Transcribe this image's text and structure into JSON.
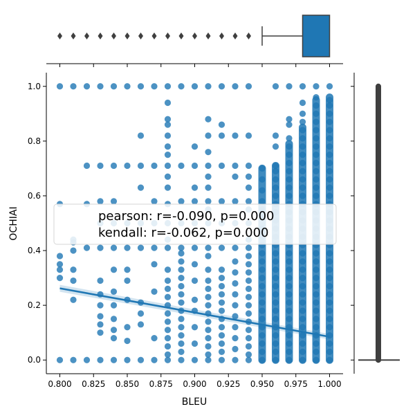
{
  "chart_data": {
    "type": "scatter",
    "subtype": "jointplot",
    "title": "",
    "xlabel": "BLEU",
    "ylabel": "OCHIAI",
    "xlim": [
      0.79,
      1.01
    ],
    "ylim": [
      -0.05,
      1.05
    ],
    "x_ticks": [
      "0.800",
      "0.825",
      "0.850",
      "0.875",
      "0.900",
      "0.925",
      "0.950",
      "0.975",
      "1.000"
    ],
    "y_ticks": [
      "0.0",
      "0.2",
      "0.4",
      "0.6",
      "0.8",
      "1.0"
    ],
    "annotation_lines": [
      "pearson: r=-0.090, p=0.000",
      "kendall: r=-0.062, p=0.000"
    ],
    "pearson": {
      "r": -0.09,
      "p": 0.0
    },
    "kendall": {
      "r": -0.062,
      "p": 0.0
    },
    "regression": {
      "x": [
        0.8,
        1.0
      ],
      "y": [
        0.262,
        0.085
      ]
    },
    "marker_color": "#1f77b4",
    "box_edge_color": "#3f3f3f",
    "x_levels": [
      0.8,
      0.81,
      0.82,
      0.83,
      0.84,
      0.85,
      0.86,
      0.87,
      0.88,
      0.89,
      0.9,
      0.91,
      0.92,
      0.93,
      0.94,
      0.95,
      0.96,
      0.97,
      0.98,
      0.99,
      1.0
    ],
    "points": [
      [
        0.8,
        0.0
      ],
      [
        0.8,
        0.3
      ],
      [
        0.8,
        0.33
      ],
      [
        0.8,
        0.35
      ],
      [
        0.8,
        0.38
      ],
      [
        0.8,
        0.57
      ],
      [
        0.8,
        1.0
      ],
      [
        0.81,
        0.0
      ],
      [
        0.81,
        0.22
      ],
      [
        0.81,
        0.29
      ],
      [
        0.81,
        0.33
      ],
      [
        0.81,
        0.4
      ],
      [
        0.81,
        0.43
      ],
      [
        0.81,
        0.44
      ],
      [
        0.81,
        1.0
      ],
      [
        0.82,
        0.0
      ],
      [
        0.82,
        0.41
      ],
      [
        0.82,
        0.57
      ],
      [
        0.82,
        0.71
      ],
      [
        0.82,
        1.0
      ],
      [
        0.83,
        0.0
      ],
      [
        0.83,
        0.1
      ],
      [
        0.83,
        0.13
      ],
      [
        0.83,
        0.16
      ],
      [
        0.83,
        0.2
      ],
      [
        0.83,
        0.24
      ],
      [
        0.83,
        0.29
      ],
      [
        0.83,
        0.41
      ],
      [
        0.83,
        0.5
      ],
      [
        0.83,
        0.58
      ],
      [
        0.83,
        0.71
      ],
      [
        0.83,
        1.0
      ],
      [
        0.84,
        0.0
      ],
      [
        0.84,
        0.08
      ],
      [
        0.84,
        0.11
      ],
      [
        0.84,
        0.15
      ],
      [
        0.84,
        0.2
      ],
      [
        0.84,
        0.25
      ],
      [
        0.84,
        0.33
      ],
      [
        0.84,
        0.41
      ],
      [
        0.84,
        0.5
      ],
      [
        0.84,
        0.58
      ],
      [
        0.84,
        0.71
      ],
      [
        0.84,
        1.0
      ],
      [
        0.85,
        0.0
      ],
      [
        0.85,
        0.07
      ],
      [
        0.85,
        0.12
      ],
      [
        0.85,
        0.22
      ],
      [
        0.85,
        0.29
      ],
      [
        0.85,
        0.33
      ],
      [
        0.85,
        0.41
      ],
      [
        0.85,
        0.5
      ],
      [
        0.85,
        0.71
      ],
      [
        0.85,
        1.0
      ],
      [
        0.86,
        0.0
      ],
      [
        0.86,
        0.13
      ],
      [
        0.86,
        0.17
      ],
      [
        0.86,
        0.21
      ],
      [
        0.86,
        0.41
      ],
      [
        0.86,
        0.5
      ],
      [
        0.86,
        0.63
      ],
      [
        0.86,
        0.71
      ],
      [
        0.86,
        0.82
      ],
      [
        0.86,
        1.0
      ],
      [
        0.87,
        0.0
      ],
      [
        0.87,
        0.08
      ],
      [
        0.87,
        0.25
      ],
      [
        0.87,
        0.35
      ],
      [
        0.87,
        0.41
      ],
      [
        0.87,
        0.5
      ],
      [
        0.87,
        0.58
      ],
      [
        0.87,
        0.71
      ],
      [
        0.87,
        1.0
      ],
      [
        0.88,
        0.0
      ],
      [
        0.88,
        0.02
      ],
      [
        0.88,
        0.05
      ],
      [
        0.88,
        0.08
      ],
      [
        0.88,
        0.11
      ],
      [
        0.88,
        0.14
      ],
      [
        0.88,
        0.17
      ],
      [
        0.88,
        0.2
      ],
      [
        0.88,
        0.23
      ],
      [
        0.88,
        0.26
      ],
      [
        0.88,
        0.29
      ],
      [
        0.88,
        0.33
      ],
      [
        0.88,
        0.41
      ],
      [
        0.88,
        0.44
      ],
      [
        0.88,
        0.5
      ],
      [
        0.88,
        0.57
      ],
      [
        0.88,
        0.63
      ],
      [
        0.88,
        0.67
      ],
      [
        0.88,
        0.71
      ],
      [
        0.88,
        0.75
      ],
      [
        0.88,
        0.78
      ],
      [
        0.88,
        0.82
      ],
      [
        0.88,
        0.86
      ],
      [
        0.88,
        0.88
      ],
      [
        0.88,
        0.94
      ],
      [
        0.88,
        1.0
      ],
      [
        0.89,
        0.0
      ],
      [
        0.89,
        0.03
      ],
      [
        0.89,
        0.06
      ],
      [
        0.89,
        0.09
      ],
      [
        0.89,
        0.12
      ],
      [
        0.89,
        0.15
      ],
      [
        0.89,
        0.18
      ],
      [
        0.89,
        0.21
      ],
      [
        0.89,
        0.24
      ],
      [
        0.89,
        0.27
      ],
      [
        0.89,
        0.3
      ],
      [
        0.89,
        0.33
      ],
      [
        0.89,
        0.36
      ],
      [
        0.89,
        0.39
      ],
      [
        0.89,
        0.41
      ],
      [
        0.89,
        0.5
      ],
      [
        0.89,
        0.58
      ],
      [
        0.89,
        0.71
      ],
      [
        0.89,
        1.0
      ],
      [
        0.9,
        0.0
      ],
      [
        0.9,
        0.06
      ],
      [
        0.9,
        0.12
      ],
      [
        0.9,
        0.18
      ],
      [
        0.9,
        0.22
      ],
      [
        0.9,
        0.29
      ],
      [
        0.9,
        0.35
      ],
      [
        0.9,
        0.41
      ],
      [
        0.9,
        0.5
      ],
      [
        0.9,
        0.58
      ],
      [
        0.9,
        0.63
      ],
      [
        0.9,
        0.71
      ],
      [
        0.9,
        0.78
      ],
      [
        0.9,
        1.0
      ],
      [
        0.91,
        0.0
      ],
      [
        0.91,
        0.02
      ],
      [
        0.91,
        0.05
      ],
      [
        0.91,
        0.08
      ],
      [
        0.91,
        0.11
      ],
      [
        0.91,
        0.14
      ],
      [
        0.91,
        0.17
      ],
      [
        0.91,
        0.2
      ],
      [
        0.91,
        0.23
      ],
      [
        0.91,
        0.26
      ],
      [
        0.91,
        0.29
      ],
      [
        0.91,
        0.33
      ],
      [
        0.91,
        0.38
      ],
      [
        0.91,
        0.41
      ],
      [
        0.91,
        0.5
      ],
      [
        0.91,
        0.55
      ],
      [
        0.91,
        0.58
      ],
      [
        0.91,
        0.63
      ],
      [
        0.91,
        0.67
      ],
      [
        0.91,
        0.71
      ],
      [
        0.91,
        0.76
      ],
      [
        0.91,
        0.82
      ],
      [
        0.91,
        0.88
      ],
      [
        0.91,
        1.0
      ],
      [
        0.92,
        0.0
      ],
      [
        0.92,
        0.03
      ],
      [
        0.92,
        0.06
      ],
      [
        0.92,
        0.09
      ],
      [
        0.92,
        0.12
      ],
      [
        0.92,
        0.15
      ],
      [
        0.92,
        0.18
      ],
      [
        0.92,
        0.21
      ],
      [
        0.92,
        0.24
      ],
      [
        0.92,
        0.27
      ],
      [
        0.92,
        0.3
      ],
      [
        0.92,
        0.33
      ],
      [
        0.92,
        0.41
      ],
      [
        0.92,
        0.5
      ],
      [
        0.92,
        0.58
      ],
      [
        0.92,
        0.71
      ],
      [
        0.92,
        0.82
      ],
      [
        0.92,
        0.86
      ],
      [
        0.92,
        1.0
      ],
      [
        0.93,
        0.0
      ],
      [
        0.93,
        0.04
      ],
      [
        0.93,
        0.08
      ],
      [
        0.93,
        0.12
      ],
      [
        0.93,
        0.16
      ],
      [
        0.93,
        0.2
      ],
      [
        0.93,
        0.24
      ],
      [
        0.93,
        0.28
      ],
      [
        0.93,
        0.32
      ],
      [
        0.93,
        0.36
      ],
      [
        0.93,
        0.41
      ],
      [
        0.93,
        0.5
      ],
      [
        0.93,
        0.58
      ],
      [
        0.93,
        0.67
      ],
      [
        0.93,
        0.71
      ],
      [
        0.93,
        0.82
      ],
      [
        0.93,
        1.0
      ],
      [
        0.94,
        0.0
      ],
      [
        0.94,
        0.02
      ],
      [
        0.94,
        0.05
      ],
      [
        0.94,
        0.08
      ],
      [
        0.94,
        0.11
      ],
      [
        0.94,
        0.14
      ],
      [
        0.94,
        0.17
      ],
      [
        0.94,
        0.2
      ],
      [
        0.94,
        0.23
      ],
      [
        0.94,
        0.26
      ],
      [
        0.94,
        0.29
      ],
      [
        0.94,
        0.32
      ],
      [
        0.94,
        0.35
      ],
      [
        0.94,
        0.38
      ],
      [
        0.94,
        0.41
      ],
      [
        0.94,
        0.44
      ],
      [
        0.94,
        0.5
      ],
      [
        0.94,
        0.55
      ],
      [
        0.94,
        0.58
      ],
      [
        0.94,
        0.63
      ],
      [
        0.94,
        0.67
      ],
      [
        0.94,
        0.71
      ],
      [
        0.94,
        0.82
      ],
      [
        0.94,
        1.0
      ],
      [
        0.95,
        0.0
      ],
      [
        0.95,
        0.03
      ],
      [
        0.95,
        0.06
      ],
      [
        0.95,
        0.09
      ],
      [
        0.95,
        0.12
      ],
      [
        0.95,
        0.15
      ],
      [
        0.95,
        0.18
      ],
      [
        0.95,
        0.21
      ],
      [
        0.95,
        0.24
      ],
      [
        0.95,
        0.27
      ],
      [
        0.95,
        0.3
      ],
      [
        0.95,
        0.33
      ],
      [
        0.95,
        0.36
      ],
      [
        0.95,
        0.39
      ],
      [
        0.95,
        0.42
      ],
      [
        0.95,
        0.45
      ],
      [
        0.95,
        0.48
      ],
      [
        0.95,
        0.52
      ],
      [
        0.95,
        0.55
      ],
      [
        0.95,
        0.58
      ],
      [
        0.95,
        0.62
      ],
      [
        0.95,
        0.66
      ],
      [
        0.95,
        0.7
      ],
      [
        0.96,
        0.0
      ],
      [
        0.96,
        0.03
      ],
      [
        0.96,
        0.06
      ],
      [
        0.96,
        0.09
      ],
      [
        0.96,
        0.12
      ],
      [
        0.96,
        0.15
      ],
      [
        0.96,
        0.18
      ],
      [
        0.96,
        0.21
      ],
      [
        0.96,
        0.24
      ],
      [
        0.96,
        0.27
      ],
      [
        0.96,
        0.3
      ],
      [
        0.96,
        0.33
      ],
      [
        0.96,
        0.36
      ],
      [
        0.96,
        0.39
      ],
      [
        0.96,
        0.42
      ],
      [
        0.96,
        0.45
      ],
      [
        0.96,
        0.48
      ],
      [
        0.96,
        0.51
      ],
      [
        0.96,
        0.54
      ],
      [
        0.96,
        0.57
      ],
      [
        0.96,
        0.6
      ],
      [
        0.96,
        0.63
      ],
      [
        0.96,
        0.66
      ],
      [
        0.96,
        0.69
      ],
      [
        0.96,
        0.71
      ],
      [
        0.96,
        0.78
      ],
      [
        0.96,
        0.82
      ],
      [
        0.96,
        1.0
      ],
      [
        0.97,
        0.0
      ],
      [
        0.97,
        0.03
      ],
      [
        0.97,
        0.06
      ],
      [
        0.97,
        0.09
      ],
      [
        0.97,
        0.12
      ],
      [
        0.97,
        0.15
      ],
      [
        0.97,
        0.18
      ],
      [
        0.97,
        0.21
      ],
      [
        0.97,
        0.24
      ],
      [
        0.97,
        0.27
      ],
      [
        0.97,
        0.3
      ],
      [
        0.97,
        0.33
      ],
      [
        0.97,
        0.36
      ],
      [
        0.97,
        0.39
      ],
      [
        0.97,
        0.42
      ],
      [
        0.97,
        0.45
      ],
      [
        0.97,
        0.48
      ],
      [
        0.97,
        0.51
      ],
      [
        0.97,
        0.54
      ],
      [
        0.97,
        0.57
      ],
      [
        0.97,
        0.6
      ],
      [
        0.97,
        0.63
      ],
      [
        0.97,
        0.66
      ],
      [
        0.97,
        0.69
      ],
      [
        0.97,
        0.72
      ],
      [
        0.97,
        0.75
      ],
      [
        0.97,
        0.78
      ],
      [
        0.97,
        0.81
      ],
      [
        0.97,
        0.86
      ],
      [
        0.97,
        0.88
      ],
      [
        0.97,
        1.0
      ],
      [
        0.98,
        0.0
      ],
      [
        0.98,
        0.03
      ],
      [
        0.98,
        0.06
      ],
      [
        0.98,
        0.09
      ],
      [
        0.98,
        0.12
      ],
      [
        0.98,
        0.15
      ],
      [
        0.98,
        0.18
      ],
      [
        0.98,
        0.21
      ],
      [
        0.98,
        0.24
      ],
      [
        0.98,
        0.27
      ],
      [
        0.98,
        0.3
      ],
      [
        0.98,
        0.33
      ],
      [
        0.98,
        0.36
      ],
      [
        0.98,
        0.39
      ],
      [
        0.98,
        0.42
      ],
      [
        0.98,
        0.45
      ],
      [
        0.98,
        0.48
      ],
      [
        0.98,
        0.51
      ],
      [
        0.98,
        0.54
      ],
      [
        0.98,
        0.57
      ],
      [
        0.98,
        0.6
      ],
      [
        0.98,
        0.63
      ],
      [
        0.98,
        0.66
      ],
      [
        0.98,
        0.69
      ],
      [
        0.98,
        0.72
      ],
      [
        0.98,
        0.75
      ],
      [
        0.98,
        0.78
      ],
      [
        0.98,
        0.81
      ],
      [
        0.98,
        0.84
      ],
      [
        0.98,
        0.87
      ],
      [
        0.98,
        0.9
      ],
      [
        0.98,
        0.94
      ],
      [
        0.98,
        1.0
      ],
      [
        0.99,
        0.0
      ],
      [
        0.99,
        0.03
      ],
      [
        0.99,
        0.06
      ],
      [
        0.99,
        0.09
      ],
      [
        0.99,
        0.12
      ],
      [
        0.99,
        0.15
      ],
      [
        0.99,
        0.18
      ],
      [
        0.99,
        0.21
      ],
      [
        0.99,
        0.24
      ],
      [
        0.99,
        0.27
      ],
      [
        0.99,
        0.3
      ],
      [
        0.99,
        0.33
      ],
      [
        0.99,
        0.36
      ],
      [
        0.99,
        0.39
      ],
      [
        0.99,
        0.42
      ],
      [
        0.99,
        0.45
      ],
      [
        0.99,
        0.48
      ],
      [
        0.99,
        0.51
      ],
      [
        0.99,
        0.54
      ],
      [
        0.99,
        0.57
      ],
      [
        0.99,
        0.6
      ],
      [
        0.99,
        0.63
      ],
      [
        0.99,
        0.66
      ],
      [
        0.99,
        0.69
      ],
      [
        0.99,
        0.72
      ],
      [
        0.99,
        0.75
      ],
      [
        0.99,
        0.78
      ],
      [
        0.99,
        0.81
      ],
      [
        0.99,
        0.84
      ],
      [
        0.99,
        0.87
      ],
      [
        0.99,
        0.9
      ],
      [
        0.99,
        0.93
      ],
      [
        0.99,
        0.96
      ],
      [
        0.99,
        1.0
      ],
      [
        1.0,
        0.0
      ],
      [
        1.0,
        0.03
      ],
      [
        1.0,
        0.06
      ],
      [
        1.0,
        0.09
      ],
      [
        1.0,
        0.12
      ],
      [
        1.0,
        0.15
      ],
      [
        1.0,
        0.18
      ],
      [
        1.0,
        0.21
      ],
      [
        1.0,
        0.24
      ],
      [
        1.0,
        0.27
      ],
      [
        1.0,
        0.3
      ],
      [
        1.0,
        0.33
      ],
      [
        1.0,
        0.36
      ],
      [
        1.0,
        0.39
      ],
      [
        1.0,
        0.42
      ],
      [
        1.0,
        0.45
      ],
      [
        1.0,
        0.48
      ],
      [
        1.0,
        0.51
      ],
      [
        1.0,
        0.54
      ],
      [
        1.0,
        0.57
      ],
      [
        1.0,
        0.6
      ],
      [
        1.0,
        0.63
      ],
      [
        1.0,
        0.66
      ],
      [
        1.0,
        0.69
      ],
      [
        1.0,
        0.72
      ],
      [
        1.0,
        0.75
      ],
      [
        1.0,
        0.78
      ],
      [
        1.0,
        0.81
      ],
      [
        1.0,
        0.84
      ],
      [
        1.0,
        0.87
      ],
      [
        1.0,
        0.9
      ],
      [
        1.0,
        0.93
      ],
      [
        1.0,
        0.95
      ],
      [
        1.0,
        1.0
      ]
    ],
    "dense_columns": [
      {
        "x": 0.95,
        "ymin": 0.0,
        "ymax": 0.7
      },
      {
        "x": 0.96,
        "ymin": 0.0,
        "ymax": 0.71
      },
      {
        "x": 0.97,
        "ymin": 0.0,
        "ymax": 0.79
      },
      {
        "x": 0.98,
        "ymin": 0.0,
        "ymax": 0.85
      },
      {
        "x": 0.99,
        "ymin": 0.0,
        "ymax": 0.95
      },
      {
        "x": 1.0,
        "ymin": 0.0,
        "ymax": 0.96
      }
    ],
    "x_marginal_box": {
      "q1": 0.98,
      "q3": 1.0,
      "median": 1.0,
      "whisker_low": 0.95,
      "whisker_high": 1.0,
      "outliers": [
        0.8,
        0.81,
        0.82,
        0.83,
        0.84,
        0.85,
        0.86,
        0.87,
        0.88,
        0.89,
        0.9,
        0.91,
        0.92,
        0.93,
        0.94
      ]
    },
    "y_marginal_box": {
      "q1": 0.0,
      "q3": 0.0,
      "median": 0.0,
      "whisker_low": 0.0,
      "whisker_high": 0.0,
      "outlier_range": [
        0.0,
        1.0
      ]
    }
  }
}
